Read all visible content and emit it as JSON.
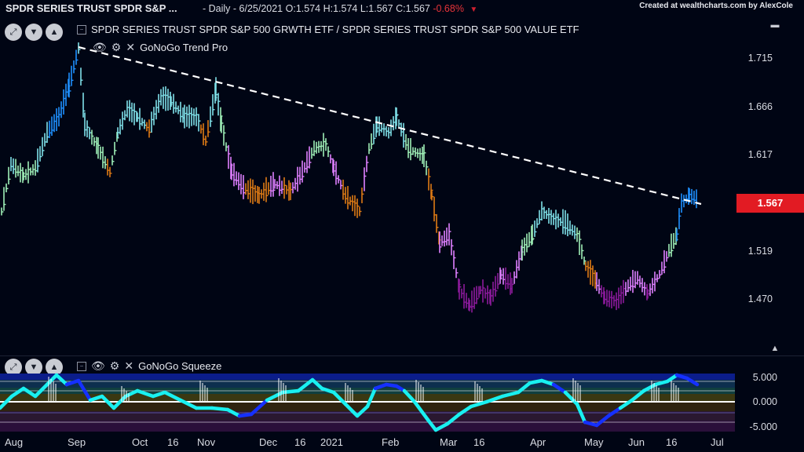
{
  "header": {
    "title": "SPDR SERIES TRUST SPDR S&P ...",
    "interval": "- Daily - 6/25/2021",
    "o": "O:1.574",
    "h": "H:1.574",
    "l": "L:1.567",
    "c": "C:1.567",
    "change": "-0.68%",
    "credit": "Created at wealthcharts.com by AlexCole"
  },
  "main_panel": {
    "legend_symbol": "SPDR SERIES TRUST SPDR S&P 500 GRWTH ETF / SPDR SERIES TRUST SPDR S&P 500 VALUE ETF",
    "indicator": "GoNoGo Trend Pro",
    "yticks": [
      "1.715",
      "1.666",
      "1.617",
      "1.567",
      "1.519",
      "1.470"
    ],
    "price_tag": "1.567"
  },
  "lower_panel": {
    "indicator": "GoNoGo Squeeze",
    "yticks": [
      "5.000",
      "0.000",
      "-5.000"
    ]
  },
  "x_axis": [
    "Aug",
    "Sep",
    "Oct",
    "16",
    "Nov",
    "Dec",
    "16",
    "2021",
    "Feb",
    "Mar",
    "16",
    "Apr",
    "May",
    "Jun",
    "16",
    "Jul"
  ],
  "colors": {
    "background": "#000514",
    "go_strong": "#1e90ff",
    "go": "#7fe0e8",
    "go_weak": "#9ff0b8",
    "caution": "#e07b14",
    "nogo": "#e080ff",
    "nogo_strong": "#8c1a9c",
    "price_tag": "#e21b23",
    "trendline": "#ffffff"
  }
}
